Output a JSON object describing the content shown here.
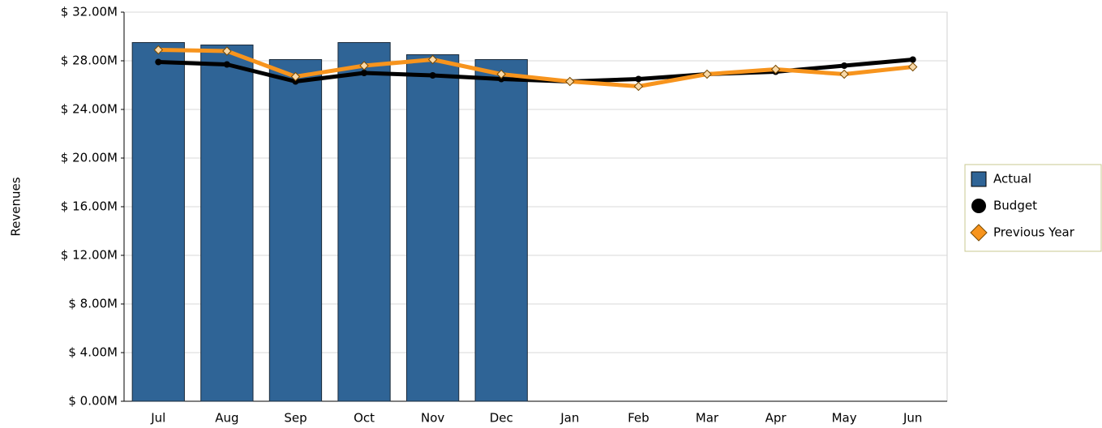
{
  "chart_data": {
    "type": "bar-line",
    "y_label": "Revenues",
    "categories": [
      "Jul",
      "Aug",
      "Sep",
      "Oct",
      "Nov",
      "Dec",
      "Jan",
      "Feb",
      "Mar",
      "Apr",
      "May",
      "Jun"
    ],
    "series": [
      {
        "name": "Actual",
        "type": "bar",
        "color": "#2f6496",
        "values": [
          29.5,
          29.3,
          28.1,
          29.5,
          28.5,
          28.1,
          null,
          null,
          null,
          null,
          null,
          null
        ]
      },
      {
        "name": "Budget",
        "type": "line",
        "color": "#000000",
        "values": [
          27.9,
          27.7,
          26.3,
          27.0,
          26.8,
          26.5,
          26.3,
          26.5,
          26.9,
          27.1,
          27.6,
          28.1
        ]
      },
      {
        "name": "Previous Year",
        "type": "line",
        "color": "#f7941d",
        "values": [
          28.9,
          28.8,
          26.7,
          27.6,
          28.1,
          26.9,
          26.3,
          25.9,
          26.9,
          27.3,
          26.9,
          27.5
        ]
      }
    ],
    "ylim": [
      0,
      32
    ],
    "yticks": [
      {
        "value": 0,
        "label": "$ 0.00M"
      },
      {
        "value": 4,
        "label": "$ 4.00M"
      },
      {
        "value": 8,
        "label": "$ 8.00M"
      },
      {
        "value": 12,
        "label": "$ 12.00M"
      },
      {
        "value": 16,
        "label": "$ 16.00M"
      },
      {
        "value": 20,
        "label": "$ 20.00M"
      },
      {
        "value": 24,
        "label": "$ 24.00M"
      },
      {
        "value": 28,
        "label": "$ 28.00M"
      },
      {
        "value": 32,
        "label": "$ 32.00M"
      }
    ],
    "grid": true,
    "legend": "right"
  }
}
